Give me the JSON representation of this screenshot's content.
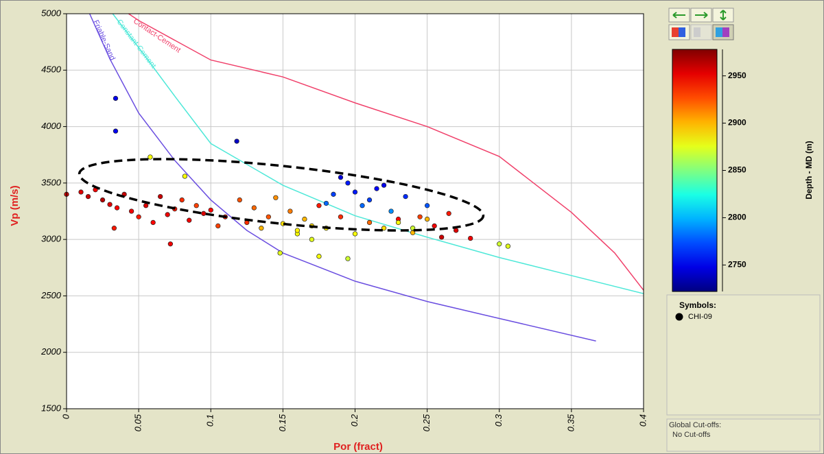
{
  "chart_data": {
    "type": "scatter",
    "xlabel": "Por (fract)",
    "ylabel": "Vp (m/s)",
    "xlim": [
      0,
      0.4
    ],
    "ylim": [
      1500,
      5000
    ],
    "xticks": [
      0,
      0.05,
      0.1,
      0.15,
      0.2,
      0.25,
      0.3,
      0.35,
      0.4
    ],
    "yticks": [
      1500,
      2000,
      2500,
      3000,
      3500,
      4000,
      4500,
      5000
    ],
    "grid": true,
    "x": [
      0,
      0.01,
      0.015,
      0.02,
      0.025,
      0.03,
      0.035,
      0.04,
      0.045,
      0.05,
      0.055,
      0.06,
      0.065,
      0.07,
      0.075,
      0.08,
      0.085,
      0.09,
      0.095,
      0.1,
      0.105,
      0.11,
      0.12,
      0.125,
      0.13,
      0.135,
      0.14,
      0.145,
      0.15,
      0.155,
      0.16,
      0.165,
      0.17,
      0.175,
      0.18,
      0.185,
      0.19,
      0.195,
      0.2,
      0.205,
      0.21,
      0.215,
      0.22,
      0.225,
      0.23,
      0.235,
      0.24,
      0.245,
      0.25,
      0.255,
      0.26,
      0.265,
      0.27,
      0.28,
      0.3,
      0.306,
      0.034,
      0.034,
      0.118,
      0.058,
      0.082,
      0.148,
      0.175,
      0.195,
      0.072,
      0.033,
      0.19,
      0.2,
      0.21,
      0.22,
      0.18,
      0.23,
      0.24,
      0.17,
      0.16,
      0.25
    ],
    "values": [
      3400,
      3420,
      3380,
      3440,
      3350,
      3310,
      3280,
      3400,
      3250,
      3200,
      3300,
      3150,
      3380,
      3220,
      3270,
      3350,
      3170,
      3300,
      3230,
      3260,
      3120,
      3200,
      3350,
      3150,
      3280,
      3100,
      3200,
      3370,
      3140,
      3250,
      3050,
      3180,
      3000,
      3300,
      3100,
      3400,
      3200,
      3500,
      3050,
      3300,
      3150,
      3450,
      3100,
      3250,
      3180,
      3380,
      3060,
      3200,
      3300,
      3120,
      3020,
      3230,
      3080,
      3010,
      2960,
      2940,
      4250,
      3960,
      3870,
      3730,
      3560,
      2880,
      2850,
      2830,
      2960,
      3100,
      3550,
      3420,
      3350,
      3480,
      3320,
      3150,
      3100,
      3120,
      3080,
      3180
    ],
    "depth": [
      2960,
      2955,
      2960,
      2950,
      2965,
      2955,
      2945,
      2960,
      2950,
      2940,
      2955,
      2945,
      2960,
      2950,
      2940,
      2935,
      2950,
      2930,
      2955,
      2945,
      2930,
      2940,
      2925,
      2935,
      2920,
      2900,
      2925,
      2910,
      2890,
      2915,
      2880,
      2900,
      2875,
      2940,
      2885,
      2770,
      2935,
      2760,
      2880,
      2780,
      2920,
      2755,
      2890,
      2790,
      2945,
      2765,
      2900,
      2930,
      2775,
      2950,
      2960,
      2940,
      2955,
      2950,
      2870,
      2875,
      2750,
      2750,
      2740,
      2880,
      2880,
      2875,
      2880,
      2870,
      2950,
      2940,
      2745,
      2760,
      2770,
      2750,
      2780,
      2880,
      2870,
      2890,
      2885,
      2900
    ],
    "colorbar": {
      "label": "Depth - MD (m)",
      "lim": [
        2722,
        2978
      ],
      "ticks": [
        2750,
        2800,
        2850,
        2900,
        2950
      ]
    },
    "series": [
      {
        "name": "Friable-Sand",
        "color": "#6a4ee0",
        "x": [
          0.016,
          0.03,
          0.05,
          0.075,
          0.1,
          0.125,
          0.15,
          0.2,
          0.25,
          0.3,
          0.367
        ],
        "values": [
          5000,
          4600,
          4120,
          3700,
          3350,
          3080,
          2880,
          2630,
          2450,
          2300,
          2100
        ]
      },
      {
        "name": "Constant-Cement",
        "color": "#4ee8d8",
        "x": [
          0.032,
          0.05,
          0.075,
          0.1,
          0.15,
          0.2,
          0.25,
          0.3,
          0.35,
          0.4
        ],
        "values": [
          5000,
          4700,
          4270,
          3850,
          3480,
          3210,
          3020,
          2840,
          2680,
          2520
        ]
      },
      {
        "name": "Contact-Cement",
        "color": "#f0406a",
        "x": [
          0.043,
          0.05,
          0.1,
          0.15,
          0.2,
          0.25,
          0.3,
          0.35,
          0.38,
          0.4
        ],
        "values": [
          5000,
          4940,
          4590,
          4440,
          4210,
          4000,
          3735,
          3240,
          2880,
          2550
        ]
      }
    ],
    "legend": {
      "title": "Symbols:",
      "entries": [
        "CHI-09"
      ]
    },
    "cutoffs": {
      "title": "Global Cut-offs:",
      "text": "No Cut-offs"
    }
  }
}
